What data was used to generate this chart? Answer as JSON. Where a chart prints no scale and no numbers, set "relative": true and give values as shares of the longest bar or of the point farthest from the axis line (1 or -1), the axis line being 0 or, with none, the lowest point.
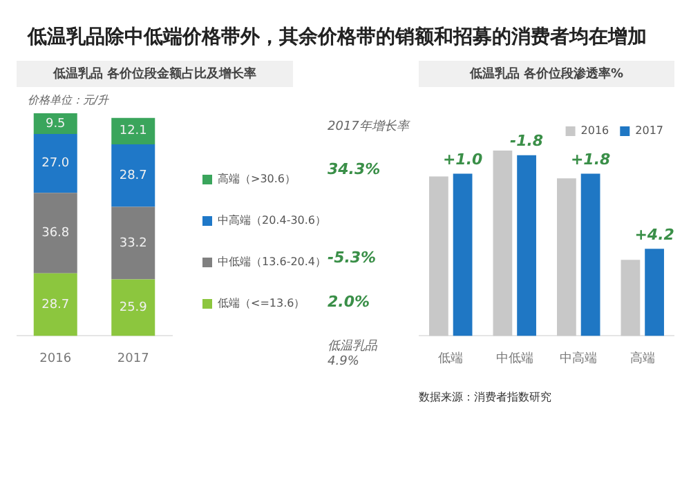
{
  "chart_data": [
    {
      "type": "bar",
      "title": "低温乳品除中低端价格带外，其余价格带的销额和招募的消费者均在增加",
      "subtitle": "低温乳品 各价位段金额占比及增长率",
      "categories": [
        "2016",
        "2017"
      ],
      "series": [
        {
          "name": "低端（<=13.6）",
          "color": "#8cc63e",
          "values": [
            28.7,
            25.9
          ],
          "value_labels": [
            "28.7",
            "25.9"
          ]
        },
        {
          "name": "中低端（13.6-20.4）",
          "color": "#808080",
          "values": [
            36.8,
            33.2
          ],
          "value_labels": [
            "36.8",
            "33.2"
          ]
        },
        {
          "name": "中高端（20.4-30.6）",
          "color": "#1f78c8",
          "values": [
            27.0,
            28.7
          ],
          "value_labels": [
            "27.0",
            "28.7"
          ]
        },
        {
          "name": "高端（>30.6）",
          "color": "#3aa55c",
          "values": [
            9.5,
            12.1
          ],
          "value_labels": [
            "9.5",
            "12.1"
          ]
        }
      ],
      "stacked": true,
      "ylim": [
        0,
        102
      ],
      "tick_labels": "x",
      "grid": false,
      "legend": "right",
      "annotations": [
        "价格单位：元/升",
        "2017年增长率",
        "34.3%",
        "-5.3%",
        "2.0%",
        "低温乳品 4.9%"
      ]
    },
    {
      "type": "bar",
      "title": "低温乳品 各价位段渗透率%",
      "categories": [
        "低端",
        "中低端",
        "中高端",
        "高端"
      ],
      "series": [
        {
          "name": "2016",
          "color": "#c8c8c8",
          "values": [
            0.86,
            1.0,
            0.85,
            0.41
          ]
        },
        {
          "name": "2017",
          "color": "#1f77c4",
          "values": [
            0.875,
            0.975,
            0.875,
            0.47
          ]
        }
      ],
      "relative": true,
      "grid": false,
      "legend": "top right",
      "annotations": [
        {
          "text": "+1.0",
          "x": "低端",
          "y": 0.875
        },
        {
          "text": "-1.8",
          "x": "中低端",
          "y": 0.975
        },
        {
          "text": "+1.8",
          "x": "中高端",
          "y": 0.875
        },
        {
          "text": "+4.2",
          "x": "高端",
          "y": 0.47
        },
        "数据来源：消费者指数研究"
      ]
    }
  ]
}
